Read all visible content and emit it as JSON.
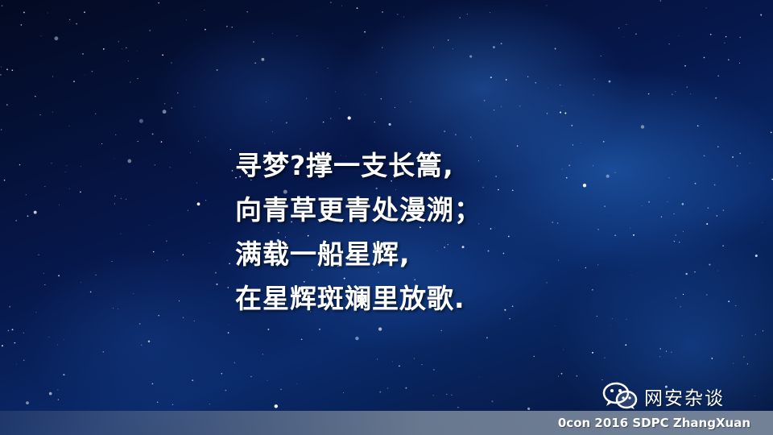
{
  "slide": {
    "poem_lines": [
      "寻梦?撑一支长篙,",
      "向青草更青处漫溯；",
      "满载一船星辉,",
      "在星辉斑斓里放歌."
    ],
    "watermark": {
      "icon": "wechat-icon",
      "text": "网安杂谈"
    },
    "footer": {
      "text": "0con 2016 SDPC ZhangXuan"
    }
  },
  "colors": {
    "background": "#02081c",
    "nebula": "#2a6ec8",
    "text": "#ffffff",
    "footer_bar": "#7c8ba0"
  }
}
